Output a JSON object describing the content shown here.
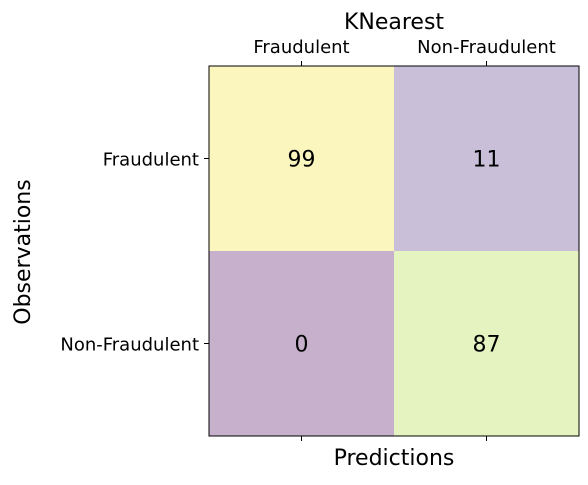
{
  "chart_data": {
    "type": "heatmap",
    "title": "KNearest",
    "xlabel": "Predictions",
    "ylabel": "Observations",
    "x_categories": [
      "Fraudulent",
      "Non-Fraudulent"
    ],
    "y_categories": [
      "Fraudulent",
      "Non-Fraudulent"
    ],
    "values": [
      [
        99,
        11
      ],
      [
        0,
        87
      ]
    ],
    "x_tick_position": "top",
    "cell_colors": [
      [
        "#fbf6bd",
        "#c9bfd8"
      ],
      [
        "#c6b0cb",
        "#e5f3c1"
      ]
    ],
    "grid": false
  }
}
